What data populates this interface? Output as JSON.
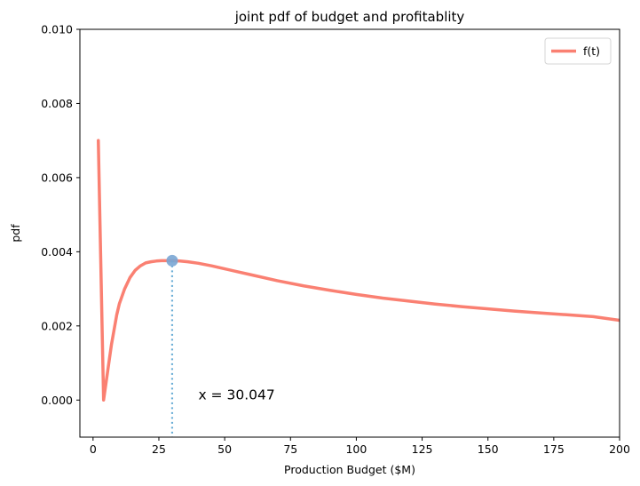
{
  "chart_data": {
    "type": "line",
    "title": "joint pdf of budget and profitablity",
    "xlabel": "Production Budget ($M)",
    "ylabel": "pdf",
    "xlim": [
      -5,
      200
    ],
    "ylim": [
      -0.001,
      0.01
    ],
    "xticks": [
      0,
      25,
      50,
      75,
      100,
      125,
      150,
      175,
      200
    ],
    "yticks": [
      0.0,
      0.002,
      0.004,
      0.006,
      0.008,
      0.01
    ],
    "ytick_labels": [
      "0.000",
      "0.002",
      "0.004",
      "0.006",
      "0.008",
      "0.010"
    ],
    "grid": false,
    "legend": {
      "position": "top-right",
      "entries": [
        "f(t)"
      ]
    },
    "series": [
      {
        "name": "f(t)",
        "color": "#fa8072",
        "x": [
          2,
          4,
          5,
          6,
          7,
          8,
          9,
          10,
          12,
          14,
          16,
          18,
          20,
          22,
          24,
          26,
          28,
          30,
          33,
          36,
          40,
          45,
          50,
          55,
          60,
          70,
          80,
          90,
          100,
          110,
          120,
          130,
          140,
          150,
          160,
          170,
          180,
          190,
          200
        ],
        "y": [
          0.007,
          0.0,
          0.0005,
          0.001,
          0.0015,
          0.0019,
          0.0023,
          0.0026,
          0.003,
          0.0033,
          0.0035,
          0.00362,
          0.0037,
          0.00373,
          0.00375,
          0.00376,
          0.00376,
          0.00376,
          0.00375,
          0.00373,
          0.00369,
          0.00362,
          0.00354,
          0.00346,
          0.00338,
          0.00322,
          0.00308,
          0.00296,
          0.00285,
          0.00275,
          0.00267,
          0.00259,
          0.00252,
          0.00246,
          0.0024,
          0.00235,
          0.0023,
          0.00225,
          0.00215
        ]
      }
    ],
    "marker": {
      "x": 30.047,
      "y": 0.00376,
      "color": "#7aa6d4"
    },
    "vline": {
      "x": 30.047,
      "color": "#6baed6",
      "style": "dotted"
    },
    "annotation": {
      "text": "x = 30.047",
      "x": 40,
      "y": 0.0
    }
  }
}
